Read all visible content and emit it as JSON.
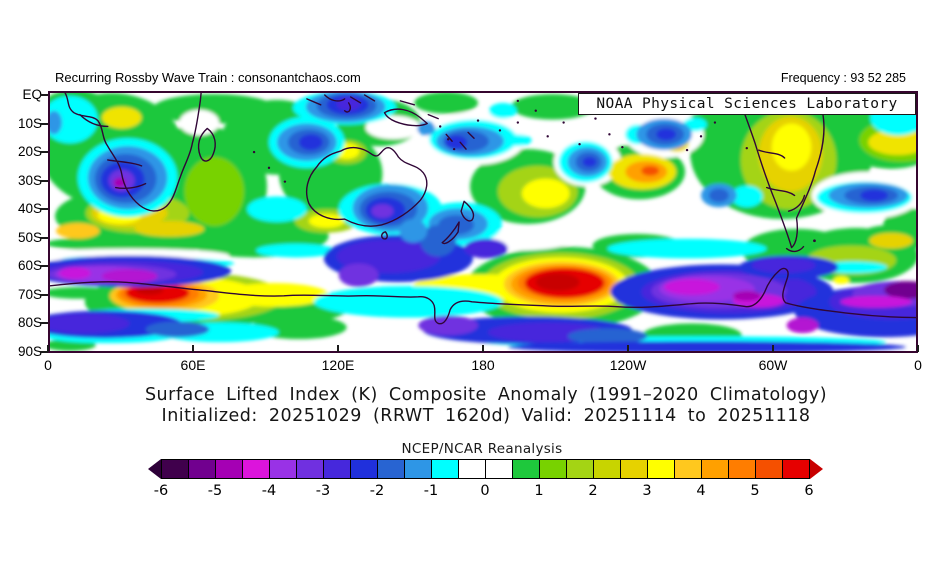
{
  "header": {
    "left": "Recurring Rossby Wave Train : consonantchaos.com",
    "right": "Frequency : 93 52 285"
  },
  "map": {
    "overlay_label": "NOAA Physical Sciences Laboratory",
    "lat_labels": [
      "EQ",
      "10S",
      "20S",
      "30S",
      "40S",
      "50S",
      "60S",
      "70S",
      "80S",
      "90S"
    ],
    "lon_labels": [
      "0",
      "60E",
      "120E",
      "180",
      "120W",
      "60W",
      "0"
    ]
  },
  "title": {
    "line1": "Surface Lifted Index (K) Composite Anomaly (1991–2020 Climatology)",
    "line2": "Initialized: 20251029 (RRWT 1620d) Valid: 20251114 to 20251118"
  },
  "colorbar": {
    "label": "NCEP/NCAR Reanalysis",
    "tick_labels": [
      "-6",
      "-5",
      "-4",
      "-3",
      "-2",
      "-1",
      "0",
      "1",
      "2",
      "3",
      "4",
      "5",
      "6"
    ],
    "cell_colors": [
      "#40004C",
      "#71008F",
      "#A500B4",
      "#DC14DC",
      "#9932E6",
      "#7030E0",
      "#4628DC",
      "#2030DC",
      "#2864D2",
      "#2E96E6",
      "#00FFFF",
      "#FFFFFF",
      "#FFFFFF",
      "#1EC83C",
      "#78D200",
      "#A4D414",
      "#C8D400",
      "#E6D200",
      "#FFFF00",
      "#FFC81E",
      "#FFA000",
      "#FF7D00",
      "#F55000",
      "#E60000"
    ],
    "left_arrow_color": "#2D0038",
    "right_arrow_color": "#C80000"
  },
  "chart_data": {
    "type": "filled_contour_map",
    "title": "Surface Lifted Index (K) Composite Anomaly (1991–2020 Climatology)",
    "subtitle": "Initialized: 20251029 (RRWT 1620d) Valid: 20251114 to 20251118",
    "source": "NCEP/NCAR Reanalysis",
    "units": "K",
    "lat_ticks": [
      "EQ",
      "10S",
      "20S",
      "30S",
      "40S",
      "50S",
      "60S",
      "70S",
      "80S",
      "90S"
    ],
    "lon_ticks": [
      "0",
      "60E",
      "120E",
      "180",
      "120W",
      "60W",
      "0"
    ],
    "colorbar_ticks": [
      -6,
      -5,
      -4,
      -3,
      -2,
      -1,
      0,
      1,
      2,
      3,
      4,
      5,
      6
    ],
    "contour_interval": 0.5,
    "value_range": [
      -6,
      6
    ],
    "notable_features": [
      {
        "location": "30E 70S (near Antarctic coast)",
        "value": "+6 positive anomaly maximum"
      },
      {
        "location": "160W 68S (Ross Sea / Antarctic coast)",
        "value": "+6 positive anomaly maximum"
      },
      {
        "location": "115W 25S (SE Pacific)",
        "value": "+4 to +5 positive anomaly"
      },
      {
        "location": "25E 30S (southern Africa)",
        "value": "-3 to -4 negative anomaly"
      },
      {
        "location": "140E 35S (SE Australia)",
        "value": "-3 to -4 negative anomaly"
      },
      {
        "location": "10E 60S (South Atlantic sector)",
        "value": "-4 to -5 negative anomaly band"
      },
      {
        "location": "130W-60W 65S-75S",
        "value": "-4 to -5 negative anomaly band"
      },
      {
        "location": "115E 10S-0 (Indonesia)",
        "value": "-2 to -3 negative anomaly"
      },
      {
        "location": "South America interior",
        "value": "+2 to +3 positive anomaly"
      }
    ]
  }
}
